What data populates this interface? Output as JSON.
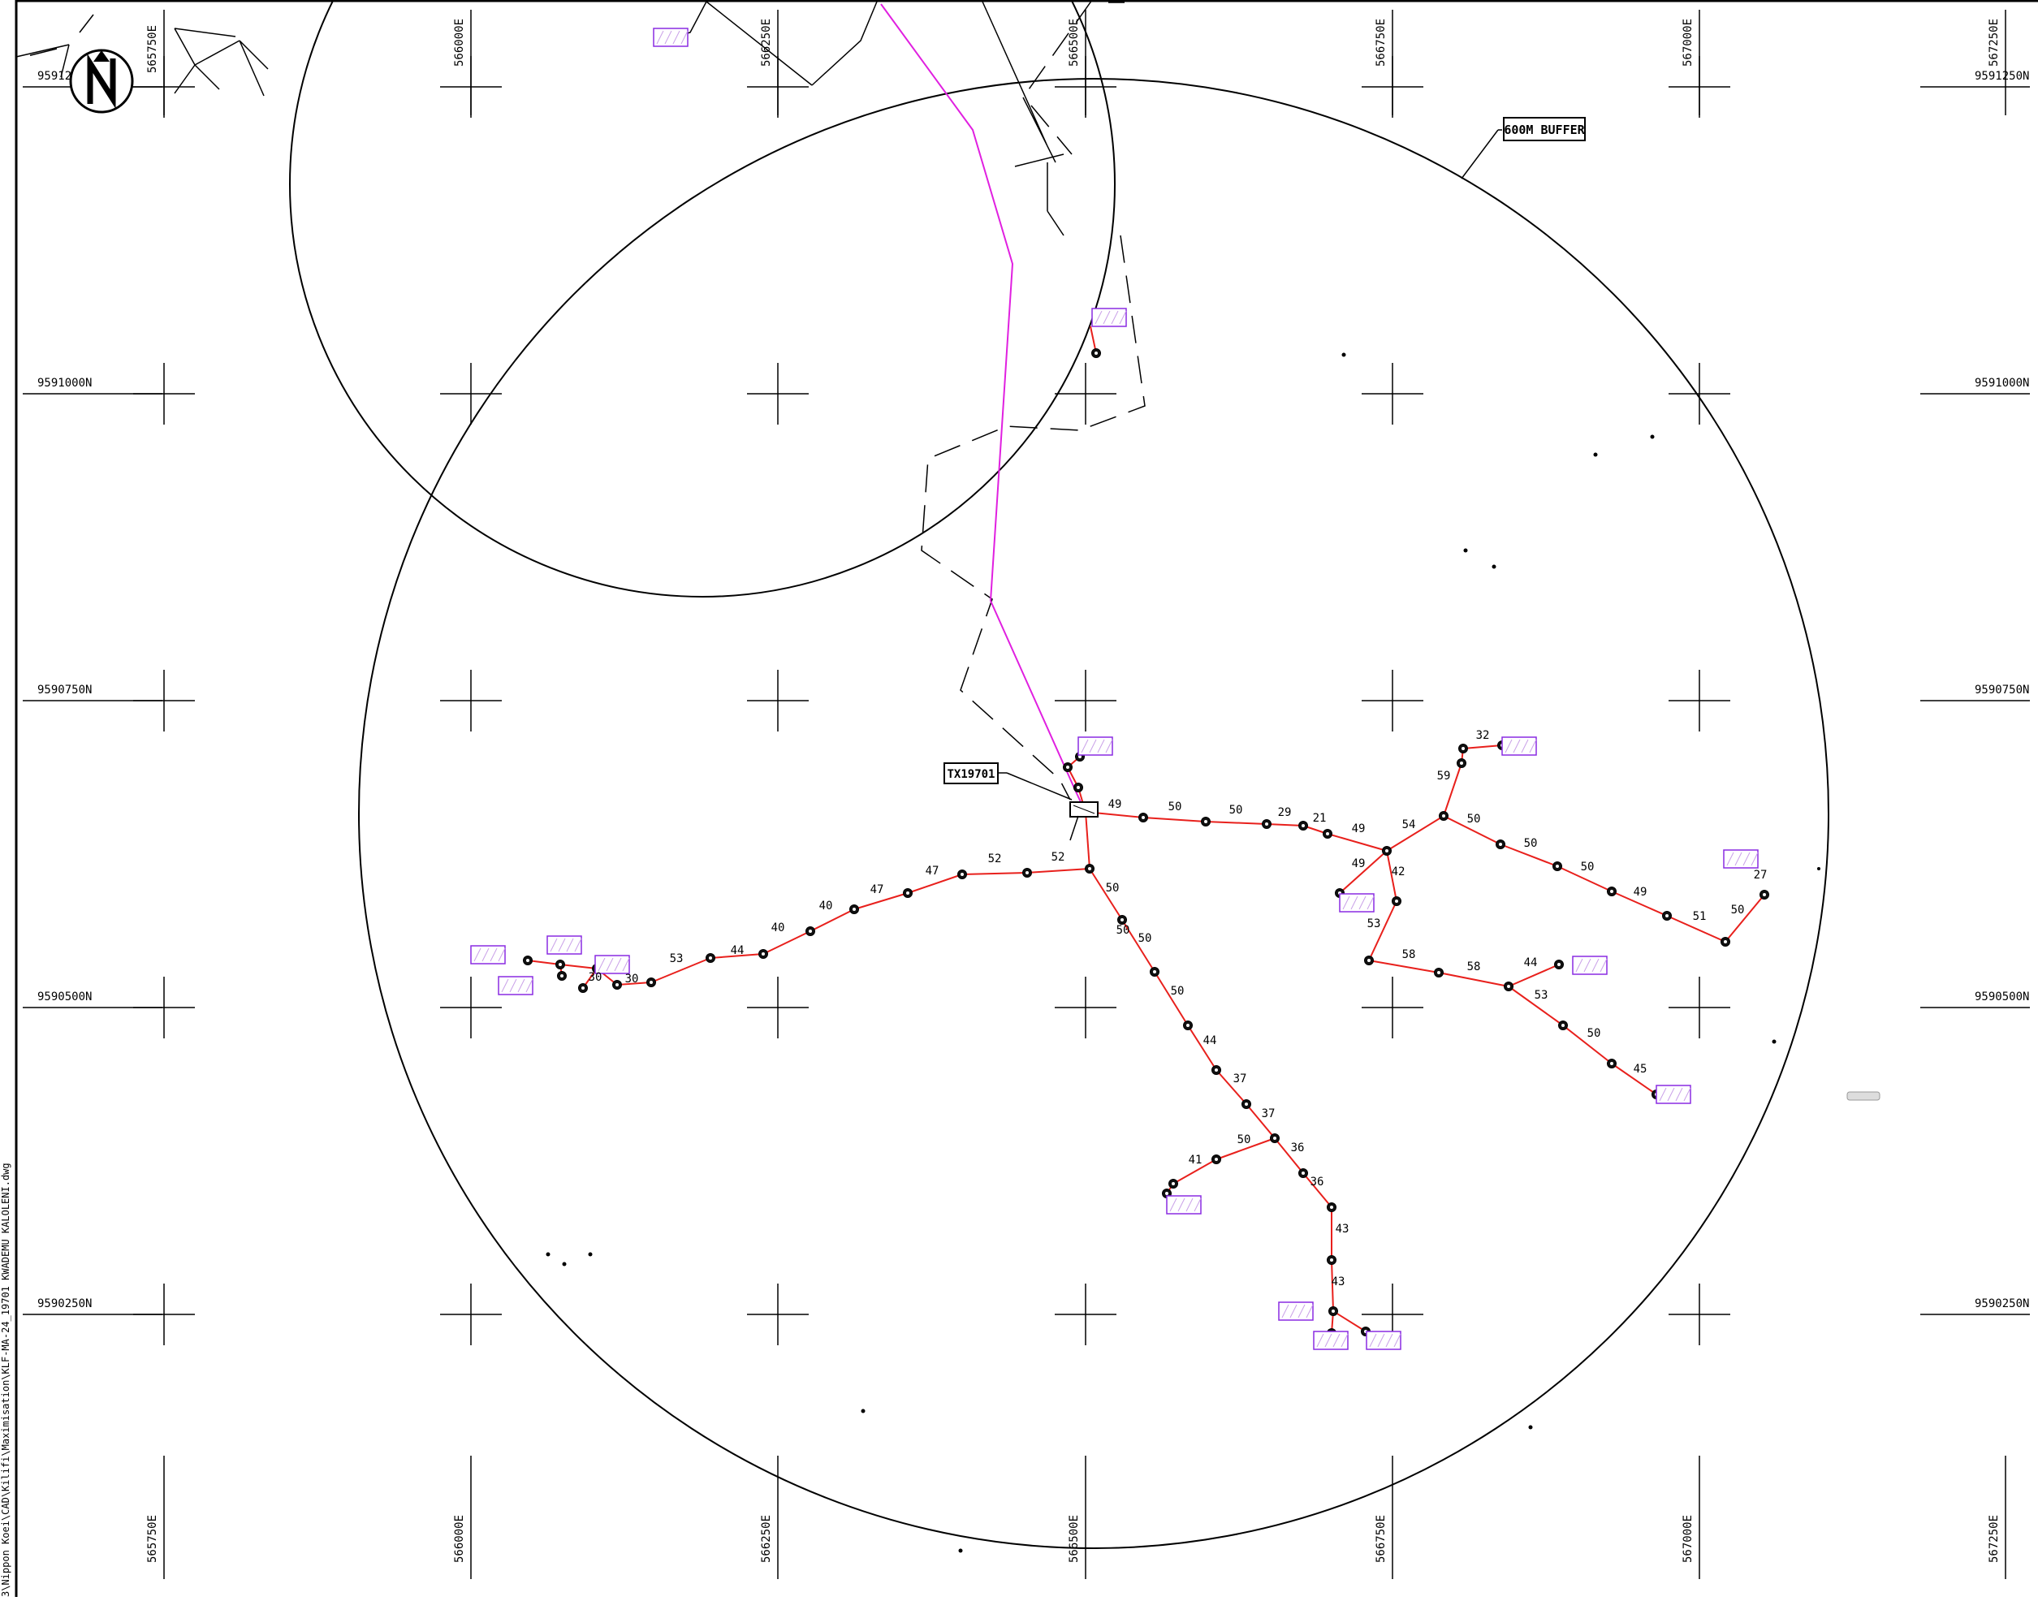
{
  "map": {
    "buffer_label": "600M BUFFER",
    "transformer_label": "TX19701",
    "file_path": "3\\Nippon Koei\\CAD\\Kilifi\\Maximisation\\KLF-MA-24_19701 KWADEMU KALOLENI.dwg"
  },
  "grid": {
    "easting_top": [
      "565750E",
      "566000E",
      "566250E",
      "566500E",
      "566750E",
      "567000E",
      "567250E"
    ],
    "easting_bottom": [
      "565750E",
      "566000E",
      "566250E",
      "566500E",
      "566750E",
      "567000E",
      "567250E"
    ],
    "northing_left": [
      "9591250N",
      "9591000N",
      "9590750N",
      "9590500N",
      "9590250N"
    ],
    "northing_right": [
      "9591250N",
      "9591000N",
      "9590750N",
      "9590500N",
      "9590250N"
    ],
    "northing_left_partial": "95912"
  },
  "span_labels": [
    "49",
    "50",
    "50",
    "29",
    "21",
    "49",
    "54",
    "50",
    "50",
    "50",
    "49",
    "51",
    "50",
    "27",
    "59",
    "32",
    "49",
    "42",
    "53",
    "58",
    "58",
    "44",
    "53",
    "50",
    "45",
    "52",
    "52",
    "47",
    "47",
    "40",
    "40",
    "44",
    "53",
    "30",
    "30",
    "50",
    "50",
    "50",
    "44",
    "37",
    "37",
    "36",
    "36",
    "50",
    "41",
    "43",
    "43",
    "50"
  ],
  "colors": {
    "line": "#e8201c",
    "hv": "#e020e0",
    "structure": "#8a2be2",
    "ink": "#000000"
  }
}
